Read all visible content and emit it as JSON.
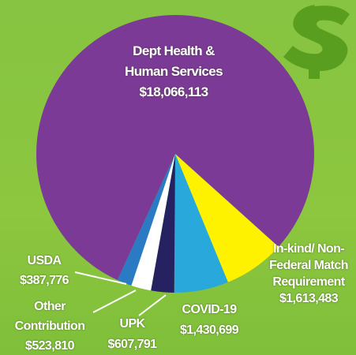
{
  "chart_data": {
    "type": "pie",
    "categories": [
      "Dept Health & Human Services",
      "In-kind/ Non-Federal Match Requirement",
      "COVID-19",
      "UPK",
      "Other Contribution",
      "USDA"
    ],
    "values": [
      18066113,
      1613483,
      1430699,
      607791,
      523810,
      387776
    ],
    "value_labels": [
      "$18,066,113",
      "$1,613,483",
      "$1,430,699",
      "$607,791",
      "$523,810",
      "$387,776"
    ],
    "colors": [
      "#7b3a96",
      "#fff200",
      "#29a8dc",
      "#262262",
      "#ffffff",
      "#2b7bc4"
    ]
  }
}
